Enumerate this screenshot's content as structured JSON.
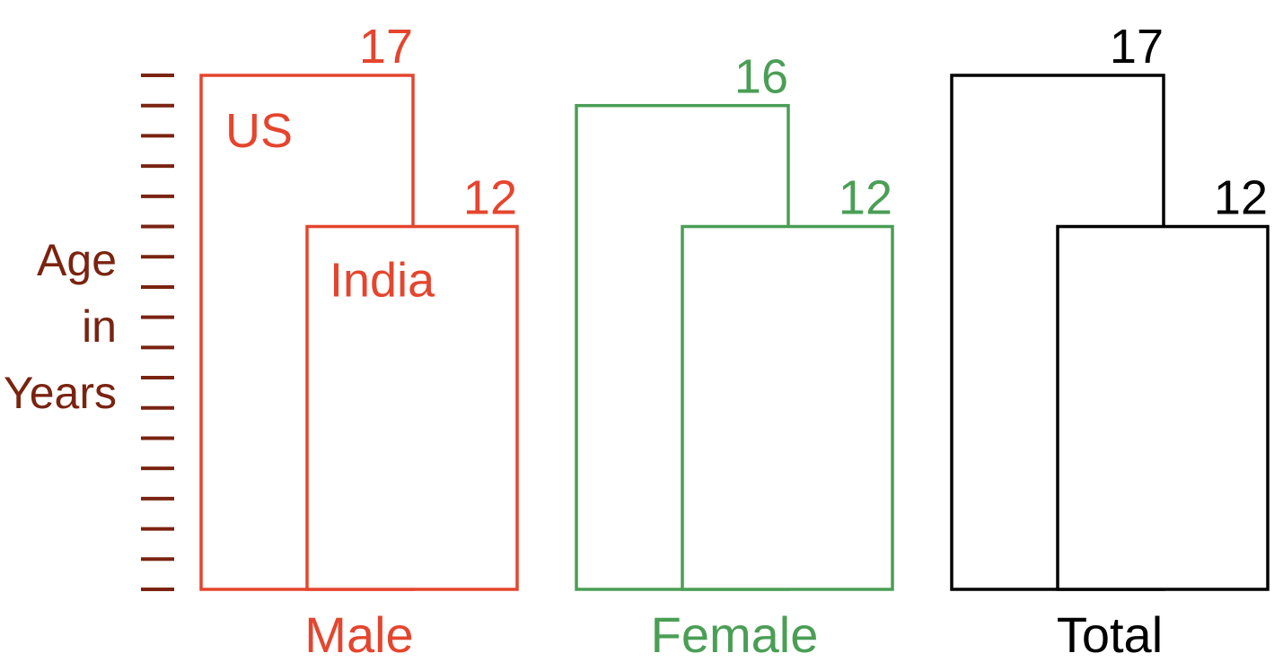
{
  "chart_data": {
    "type": "bar",
    "ylabel": [
      "Age",
      "in",
      "Years"
    ],
    "ylim": [
      0,
      17
    ],
    "tick_count": 18,
    "categories": [
      "Male",
      "Female",
      "Total"
    ],
    "series": [
      {
        "name": "US",
        "values": [
          17,
          16,
          17
        ]
      },
      {
        "name": "India",
        "values": [
          12,
          12,
          12
        ]
      }
    ],
    "series_label_group": 0,
    "group_colors": [
      "#e5452e",
      "#4a9e55",
      "#000000"
    ],
    "axis_color": "#7a2310"
  }
}
